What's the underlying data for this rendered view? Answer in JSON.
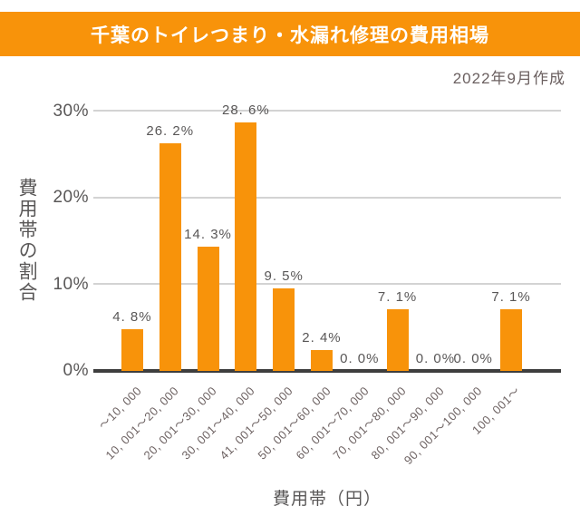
{
  "banner": {
    "title": "千葉のトイレつまり・水漏れ修理の費用相場",
    "bg_color": "#F8930A",
    "text_color": "#FFFFFF"
  },
  "meta": {
    "created_note": "2022年9月作成"
  },
  "axes": {
    "y_title": "費用帯の割合",
    "x_title": "費用帯（円）",
    "y_ticks": [
      "30%",
      "20%",
      "10%",
      "0%"
    ]
  },
  "chart_data": {
    "type": "bar",
    "title": "千葉のトイレつまり・水漏れ修理の費用相場",
    "subtitle": "2022年9月作成",
    "categories": [
      "～10,000",
      "10,001～20,000",
      "20,001～30,000",
      "30,001～40,000",
      "41,001～50,000",
      "50,001～60,000",
      "60,001～70,000",
      "70,001～80,000",
      "80,001～90,000",
      "90,001～100,000",
      "100,001～"
    ],
    "tick_labels": [
      "～10, 000",
      "10, 001～20, 000",
      "20, 001～30, 000",
      "30, 001～40, 000",
      "41, 001～50, 000",
      "50, 001～60, 000",
      "60, 001～70, 000",
      "70, 001～80, 000",
      "80, 001～90, 000",
      "90, 001～100, 000",
      "100, 001～"
    ],
    "values": [
      4.8,
      26.2,
      14.3,
      28.6,
      9.5,
      2.4,
      0.0,
      7.1,
      0.0,
      0.0,
      7.1
    ],
    "value_labels": [
      "4. 8%",
      "26. 2%",
      "14. 3%",
      "28. 6%",
      "9. 5%",
      "2. 4%",
      "0. 0%",
      "7. 1%",
      "0. 0%",
      "0. 0%",
      "7. 1%"
    ],
    "xlabel": "費用帯（円）",
    "ylabel": "費用帯の割合",
    "ylim": [
      0,
      30
    ],
    "y_tick_step": 10,
    "grid": true,
    "legend": false,
    "bar_color": "#F8930A",
    "gridline_color": "#D3D3D3",
    "baseline_color": "#3E3E3E",
    "label_color": "#595757"
  }
}
